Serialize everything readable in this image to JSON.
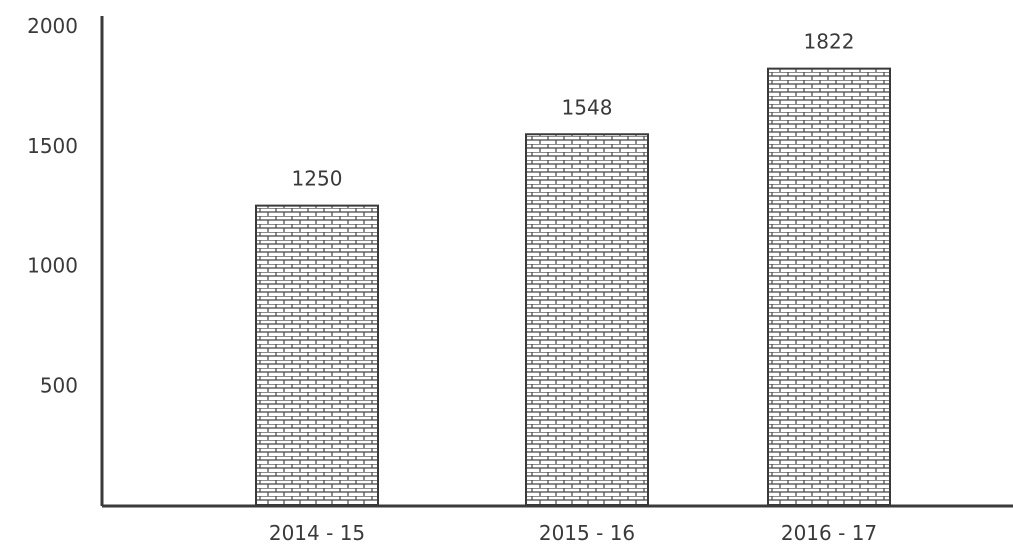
{
  "chart_data": {
    "type": "bar",
    "categories": [
      "2014 - 15",
      "2015 - 16",
      "2016 - 17"
    ],
    "values": [
      1250,
      1548,
      1822
    ],
    "data_labels": [
      "1250",
      "1548",
      "1822"
    ],
    "title": "",
    "xlabel": "",
    "ylabel": "",
    "ylim": [
      0,
      2000
    ],
    "yticks": [
      500,
      1000,
      1500,
      2000
    ],
    "ytick_labels": [
      "500",
      "1000",
      "1500",
      "2000"
    ],
    "grid": false,
    "legend": "none",
    "bar_pattern": "brick-hatch",
    "colors": {
      "axis": "#3a3a3a",
      "bar_fill": "#ffffff",
      "bar_pattern": "#4a4a4a"
    }
  }
}
